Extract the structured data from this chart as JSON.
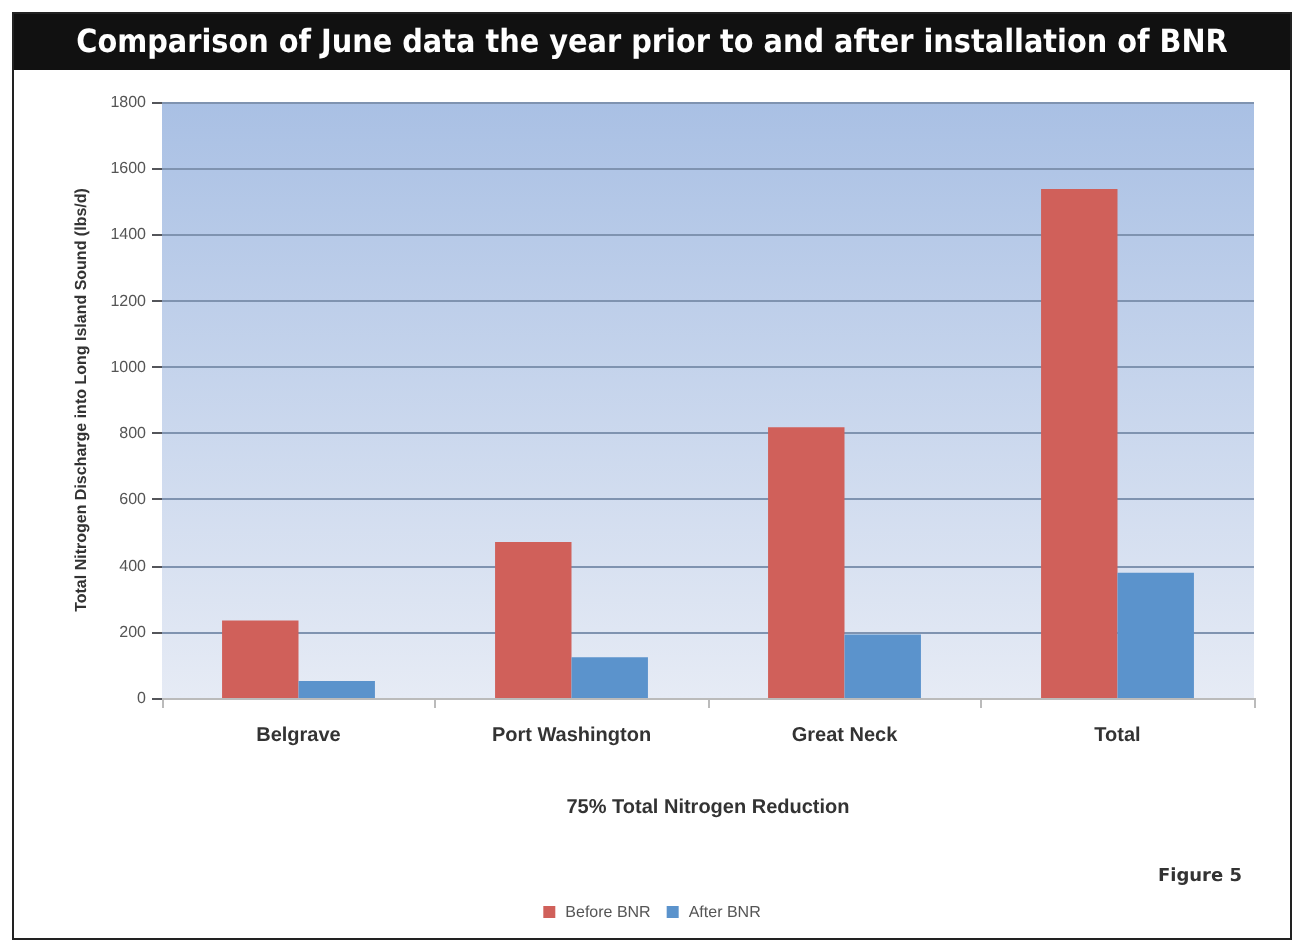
{
  "chart_data": {
    "type": "bar",
    "title": "Comparison of June data the year prior to and after installation of BNR",
    "ylabel": "Total Nitrogen Discharge into Long Island Sound (lbs/d)",
    "xlabel": "75% Total Nitrogen Reduction",
    "annotations": [
      "Figure 5"
    ],
    "categories": [
      "Belgrave",
      "Port Washington",
      "Great Neck",
      "Total"
    ],
    "series": [
      {
        "name": "Before BNR",
        "color": "#d0605a",
        "values": [
          234,
          471,
          818,
          1537
        ]
      },
      {
        "name": "After BNR",
        "color": "#5b93cc",
        "values": [
          51,
          123,
          192,
          378
        ]
      }
    ],
    "ylim": [
      0,
      1800
    ],
    "yticks": [
      0,
      200,
      400,
      600,
      800,
      1000,
      1200,
      1400,
      1600,
      1800
    ],
    "grid": "y",
    "legend": "bottom"
  }
}
